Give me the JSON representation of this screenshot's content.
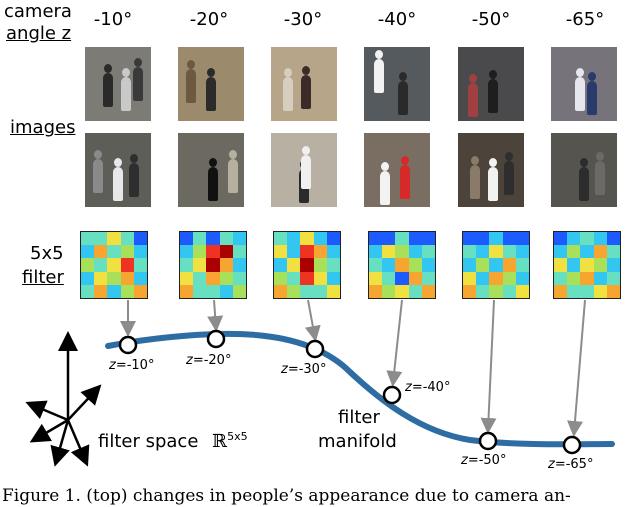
{
  "labels": {
    "camera_line1": "camera",
    "camera_line2": "angle z",
    "images": "images",
    "filter_line1": "5x5",
    "filter_line2": "filter",
    "filter_space": "filter space",
    "filter_space_symbol": "ℝ",
    "filter_space_exp": "5x5",
    "manifold_line1": "filter",
    "manifold_line2": "manifold"
  },
  "angles": [
    "-10°",
    "-20°",
    "-30°",
    "-40°",
    "-50°",
    "-65°"
  ],
  "manifold_points": [
    {
      "prefix": "z",
      "value": "=-10°"
    },
    {
      "prefix": "z",
      "value": "=-20°"
    },
    {
      "prefix": "z",
      "value": "=-30°"
    },
    {
      "prefix": "z",
      "value": "=-40°"
    },
    {
      "prefix": "z",
      "value": "=-50°"
    },
    {
      "prefix": "z",
      "value": "=-65°"
    }
  ],
  "caption": "Figure 1. (top) changes in people’s appearance due to camera an-",
  "colors": {
    "manifold_curve": "#2e6da4",
    "arrow": "#8c8c8c",
    "filter_palette": [
      "#0000cc",
      "#1e5bff",
      "#33c6f0",
      "#66e0c0",
      "#a8e05a",
      "#f0e040",
      "#f7a531",
      "#ee3322",
      "#aa0000"
    ]
  },
  "filters": [
    [
      [
        3,
        3,
        5,
        3,
        1
      ],
      [
        2,
        6,
        3,
        4,
        2
      ],
      [
        4,
        3,
        5,
        7,
        3
      ],
      [
        2,
        5,
        4,
        6,
        2
      ],
      [
        3,
        6,
        2,
        4,
        6
      ]
    ],
    [
      [
        1,
        3,
        1,
        3,
        2
      ],
      [
        2,
        4,
        7,
        8,
        3
      ],
      [
        3,
        5,
        8,
        6,
        2
      ],
      [
        5,
        3,
        6,
        4,
        3
      ],
      [
        6,
        3,
        3,
        2,
        4
      ]
    ],
    [
      [
        3,
        2,
        5,
        2,
        1
      ],
      [
        5,
        2,
        7,
        6,
        2
      ],
      [
        2,
        5,
        8,
        4,
        3
      ],
      [
        4,
        3,
        7,
        5,
        2
      ],
      [
        6,
        4,
        3,
        3,
        5
      ]
    ],
    [
      [
        1,
        1,
        3,
        1,
        1
      ],
      [
        2,
        5,
        4,
        2,
        3
      ],
      [
        3,
        2,
        6,
        4,
        2
      ],
      [
        5,
        3,
        1,
        6,
        3
      ],
      [
        6,
        4,
        5,
        3,
        6
      ]
    ],
    [
      [
        1,
        1,
        2,
        1,
        1
      ],
      [
        3,
        2,
        5,
        3,
        2
      ],
      [
        2,
        4,
        2,
        6,
        3
      ],
      [
        5,
        2,
        6,
        4,
        2
      ],
      [
        6,
        3,
        4,
        3,
        5
      ]
    ],
    [
      [
        1,
        2,
        3,
        2,
        1
      ],
      [
        2,
        4,
        2,
        6,
        3
      ],
      [
        5,
        2,
        5,
        4,
        2
      ],
      [
        3,
        4,
        6,
        2,
        3
      ],
      [
        6,
        3,
        3,
        5,
        6
      ]
    ]
  ],
  "photos": {
    "top": [
      {
        "bg": "#7d7b75",
        "figs": [
          [
            "#2a2a2a",
            18,
            26
          ],
          [
            "#c9c9c9",
            36,
            30
          ],
          [
            "#3a3a3a",
            48,
            20
          ]
        ]
      },
      {
        "bg": "#9c8a6c",
        "figs": [
          [
            "#2b2b2b",
            28,
            30
          ],
          [
            "#6c5a40",
            8,
            22
          ]
        ]
      },
      {
        "bg": "#b7a58a",
        "figs": [
          [
            "#3a2a2a",
            30,
            28
          ],
          [
            "#d6cfc0",
            12,
            30
          ]
        ]
      },
      {
        "bg": "#545a5e",
        "figs": [
          [
            "#f2f2f2",
            10,
            12
          ],
          [
            "#2a2a2a",
            34,
            34
          ]
        ]
      },
      {
        "bg": "#4a4a4c",
        "figs": [
          [
            "#1e1e1e",
            30,
            32
          ],
          [
            "#a04040",
            10,
            36
          ]
        ]
      },
      {
        "bg": "#76747a",
        "figs": [
          [
            "#e6e6ee",
            24,
            30
          ],
          [
            "#2a3a6a",
            36,
            34
          ]
        ]
      }
    ],
    "bottom": [
      {
        "bg": "#5d5e58",
        "figs": [
          [
            "#e8e8e8",
            28,
            34
          ],
          [
            "#2e2e2e",
            44,
            30
          ],
          [
            "#8a8a8a",
            8,
            26
          ]
        ]
      },
      {
        "bg": "#6c6a60",
        "figs": [
          [
            "#111111",
            30,
            34
          ],
          [
            "#b7b0a0",
            50,
            26
          ]
        ]
      },
      {
        "bg": "#b8b0a2",
        "figs": [
          [
            "#2a2a2a",
            28,
            36
          ],
          [
            "#f0f0f0",
            30,
            22
          ]
        ]
      },
      {
        "bg": "#7a6e62",
        "figs": [
          [
            "#d62a2a",
            36,
            32
          ],
          [
            "#f2f2f2",
            16,
            38
          ]
        ]
      },
      {
        "bg": "#4c443a",
        "figs": [
          [
            "#8a7a6a",
            12,
            32
          ],
          [
            "#f2f2f2",
            30,
            34
          ],
          [
            "#2e2e2e",
            46,
            28
          ]
        ]
      },
      {
        "bg": "#56544e",
        "figs": [
          [
            "#2c2c2c",
            28,
            34
          ],
          [
            "#6c6a66",
            44,
            28
          ]
        ]
      }
    ]
  }
}
